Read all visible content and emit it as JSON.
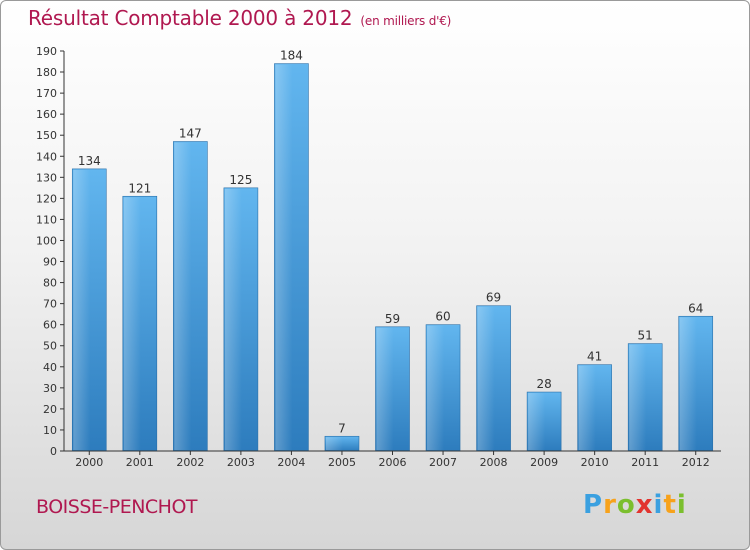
{
  "header": {
    "title": "Résultat Comptable 2000 à 2012",
    "unit": "(en milliers d'€)"
  },
  "footer": {
    "commune": "BOISSE-PENCHOT",
    "logo_letters": [
      "P",
      "r",
      "o",
      "x",
      "i",
      "t",
      "i"
    ]
  },
  "colors": {
    "title": "#b01850",
    "bar_light": "#5fb2ec",
    "bar_dark": "#2f7fbf",
    "axis": "#333333"
  },
  "chart_data": {
    "type": "bar",
    "title": "Résultat Comptable 2000 à 2012",
    "xlabel": "",
    "ylabel": "",
    "categories": [
      "2000",
      "2001",
      "2002",
      "2003",
      "2004",
      "2005",
      "2006",
      "2007",
      "2008",
      "2009",
      "2010",
      "2011",
      "2012"
    ],
    "values": [
      134,
      121,
      147,
      125,
      184,
      7,
      59,
      60,
      69,
      28,
      41,
      51,
      64
    ],
    "ylim": [
      0,
      190
    ],
    "yticks": [
      0,
      10,
      20,
      30,
      40,
      50,
      60,
      70,
      80,
      90,
      100,
      110,
      120,
      130,
      140,
      150,
      160,
      170,
      180,
      190
    ],
    "grid": false
  }
}
